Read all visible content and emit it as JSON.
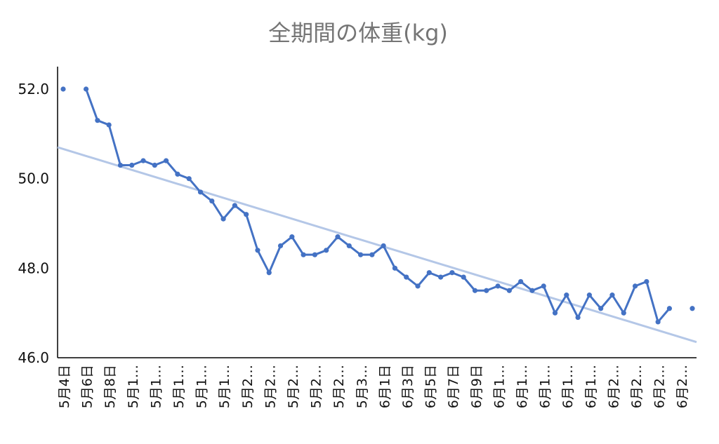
{
  "chart_data": {
    "type": "line",
    "title": "全期間の体重(kg)",
    "xlabel": "",
    "ylabel": "",
    "ylim": [
      46.0,
      52.5
    ],
    "yticks": [
      46.0,
      48.0,
      50.0,
      52.0
    ],
    "ytick_labels": [
      "46.0",
      "48.0",
      "50.0",
      "52.0"
    ],
    "grid": false,
    "legend": "none",
    "colors": {
      "line": "#4472c4",
      "trend": "#b4c7e7",
      "axis": "#000000",
      "title": "#757575"
    },
    "xtick_labels": [
      "5月4日",
      "5月6日",
      "5月8日",
      "5月1…",
      "5月1…",
      "5月1…",
      "5月1…",
      "5月1…",
      "5月2…",
      "5月2…",
      "5月2…",
      "5月2…",
      "5月2…",
      "5月3…",
      "6月1日",
      "6月3日",
      "6月5日",
      "6月7日",
      "6月9日",
      "6月1…",
      "6月1…",
      "6月1…",
      "6月1…",
      "6月1…",
      "6月2…",
      "6月2…",
      "6月2…",
      "6月2…"
    ],
    "series": [
      {
        "values": [
          52.0,
          null,
          52.0,
          51.3,
          51.2,
          50.3,
          50.3,
          50.4,
          50.3,
          50.4,
          50.1,
          50.0,
          49.7,
          49.5,
          49.1,
          49.4,
          49.2,
          48.4,
          47.9,
          48.5,
          48.7,
          48.3,
          48.3,
          48.4,
          48.7,
          48.5,
          48.3,
          48.3,
          48.5,
          48.0,
          47.8,
          47.6,
          47.9,
          47.8,
          47.9,
          47.8,
          47.5,
          47.5,
          47.6,
          47.5,
          47.7,
          47.5,
          47.6,
          47.0,
          47.4,
          46.9,
          47.4,
          47.1,
          47.4,
          47.0,
          47.6,
          47.7,
          46.8,
          47.1,
          null,
          47.1
        ]
      }
    ],
    "trendline": {
      "start": 50.7,
      "end": 46.35
    }
  }
}
